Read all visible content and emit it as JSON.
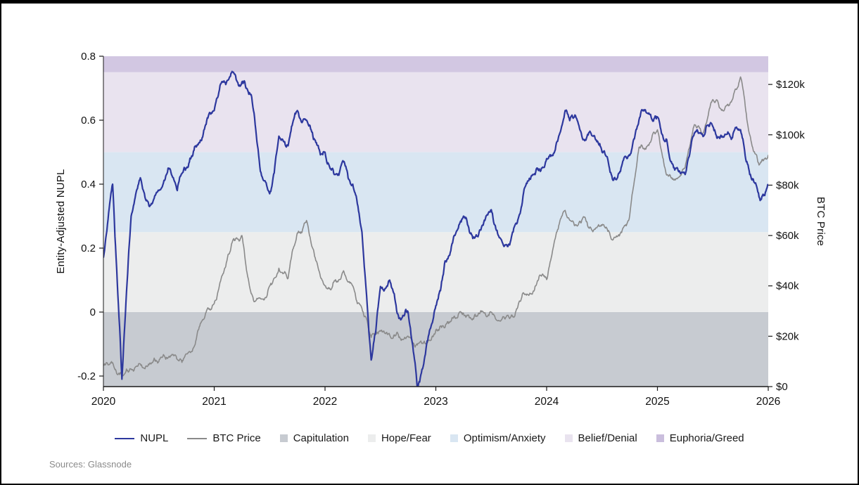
{
  "figure": {
    "source": "Sources: Glassnode"
  },
  "chart_data": {
    "type": "line",
    "title": "",
    "x_unit": "year",
    "x_start_year": 2020,
    "x_end_year": 2026,
    "x_interval_months": 1,
    "xlim": [
      2020,
      2026
    ],
    "grid": false,
    "legend_position": "bottom",
    "left_axis": {
      "label": "Entity-Adjusted NUPL",
      "ylim": [
        -0.233,
        0.8
      ],
      "ticks": [
        {
          "label": "0.8",
          "value": 0.8
        },
        {
          "label": "0.6",
          "value": 0.6
        },
        {
          "label": "0.4",
          "value": 0.4
        },
        {
          "label": "0.2",
          "value": 0.2
        },
        {
          "label": "0",
          "value": 0
        },
        {
          "label": "-0.2",
          "value": -0.2
        }
      ]
    },
    "right_axis": {
      "label": "BTC Price",
      "ylim": [
        0,
        131200
      ],
      "ticks": [
        {
          "label": "$120k",
          "value": 120000
        },
        {
          "label": "$100k",
          "value": 100000
        },
        {
          "label": "$80k",
          "value": 80000
        },
        {
          "label": "$60k",
          "value": 60000
        },
        {
          "label": "$40k",
          "value": 40000
        },
        {
          "label": "$20k",
          "value": 20000
        },
        {
          "label": "$0",
          "value": 0
        }
      ]
    },
    "x_ticks": [
      {
        "label": "2020",
        "value": 2020
      },
      {
        "label": "2021",
        "value": 2021
      },
      {
        "label": "2022",
        "value": 2022
      },
      {
        "label": "2023",
        "value": 2023
      },
      {
        "label": "2024",
        "value": 2024
      },
      {
        "label": "2025",
        "value": 2025
      },
      {
        "label": "2026",
        "value": 2026
      }
    ],
    "bands": [
      {
        "name": "Capitulation",
        "from": -0.233,
        "to": 0,
        "color": "#c7cbd1"
      },
      {
        "name": "Hope/Fear",
        "from": 0,
        "to": 0.25,
        "color": "#eceded"
      },
      {
        "name": "Optimism/Anxiety",
        "from": 0.25,
        "to": 0.5,
        "color": "#d9e6f2"
      },
      {
        "name": "Belief/Denial",
        "from": 0.5,
        "to": 0.75,
        "color": "#e9e3ef"
      },
      {
        "name": "Euphoria/Greed",
        "from": 0.75,
        "to": 0.8,
        "color": "#d2c7e2"
      }
    ],
    "series": [
      {
        "name": "NUPL",
        "axis": "left",
        "color": "#2d389e",
        "values": [
          0.17,
          0.4,
          -0.21,
          0.3,
          0.42,
          0.33,
          0.38,
          0.45,
          0.38,
          0.45,
          0.52,
          0.58,
          0.63,
          0.72,
          0.75,
          0.72,
          0.68,
          0.44,
          0.37,
          0.55,
          0.52,
          0.63,
          0.6,
          0.53,
          0.5,
          0.43,
          0.47,
          0.4,
          0.25,
          -0.15,
          0.08,
          0.1,
          -0.02,
          0.0,
          -0.24,
          -0.1,
          0.02,
          0.16,
          0.24,
          0.3,
          0.23,
          0.27,
          0.32,
          0.23,
          0.21,
          0.3,
          0.41,
          0.45,
          0.48,
          0.52,
          0.63,
          0.61,
          0.54,
          0.55,
          0.5,
          0.43,
          0.44,
          0.49,
          0.6,
          0.62,
          0.61,
          0.54,
          0.45,
          0.43,
          0.56,
          0.55,
          0.58,
          0.55,
          0.54,
          0.57,
          0.43,
          0.36,
          0.4
        ]
      },
      {
        "name": "BTC Price",
        "axis": "right",
        "color": "#8a8a8a",
        "values": [
          8500,
          9500,
          5000,
          7000,
          9000,
          9200,
          10000,
          11500,
          10800,
          13000,
          18000,
          28000,
          33000,
          45000,
          58000,
          60000,
          37000,
          35000,
          40000,
          47000,
          43000,
          61000,
          66000,
          50000,
          40000,
          42000,
          46000,
          40000,
          31000,
          19500,
          22000,
          20500,
          19500,
          20000,
          16500,
          16700,
          22500,
          23500,
          28000,
          29000,
          27000,
          30000,
          29500,
          26000,
          27000,
          33500,
          36500,
          42000,
          42500,
          60000,
          70000,
          64000,
          67500,
          61500,
          64000,
          58500,
          61000,
          68000,
          95000,
          96000,
          102000,
          84000,
          82500,
          87000,
          104000,
          101000,
          114000,
          110000,
          113000,
          123000,
          100000,
          88000,
          92000
        ]
      }
    ]
  },
  "legend": {
    "items": [
      {
        "label": "NUPL",
        "type": "line",
        "color": "#2d389e"
      },
      {
        "label": "BTC Price",
        "type": "line",
        "color": "#8a8a8a"
      },
      {
        "label": "Capitulation",
        "type": "swatch",
        "color": "#c7cbd1"
      },
      {
        "label": "Hope/Fear",
        "type": "swatch",
        "color": "#eceded"
      },
      {
        "label": "Optimism/Anxiety",
        "type": "swatch",
        "color": "#d9e6f2"
      },
      {
        "label": "Belief/Denial",
        "type": "swatch",
        "color": "#e9e3ef"
      },
      {
        "label": "Euphoria/Greed",
        "type": "swatch",
        "color": "#cabedd"
      }
    ]
  }
}
